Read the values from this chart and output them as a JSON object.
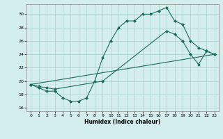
{
  "xlabel": "Humidex (Indice chaleur)",
  "bg_color": "#d4eeed",
  "grid_color": "#aed4d0",
  "line_color": "#1a6b5a",
  "xlim": [
    -0.5,
    23.5
  ],
  "ylim": [
    15.5,
    31.5
  ],
  "xticks": [
    0,
    1,
    2,
    3,
    4,
    5,
    6,
    7,
    8,
    9,
    10,
    11,
    12,
    13,
    14,
    15,
    16,
    17,
    18,
    19,
    20,
    21,
    22,
    23
  ],
  "yticks": [
    16,
    18,
    20,
    22,
    24,
    26,
    28,
    30
  ],
  "curve1_x": [
    0,
    1,
    2,
    3,
    4,
    5,
    6,
    7,
    8,
    9,
    10,
    11,
    12,
    13,
    14,
    15,
    16,
    17,
    18,
    19,
    20,
    21,
    22,
    23
  ],
  "curve1_y": [
    19.5,
    19.0,
    18.5,
    18.5,
    17.5,
    17.0,
    17.0,
    17.5,
    20.0,
    23.5,
    26.0,
    28.0,
    29.0,
    29.0,
    30.0,
    30.0,
    30.5,
    31.0,
    29.0,
    28.5,
    26.0,
    25.0,
    24.5,
    24.0
  ],
  "curve2_x": [
    0,
    1,
    2,
    3,
    9,
    17,
    18,
    19,
    20,
    21,
    22,
    23
  ],
  "curve2_y": [
    19.5,
    19.2,
    19.0,
    18.8,
    20.0,
    27.5,
    27.0,
    26.0,
    24.0,
    22.5,
    24.5,
    24.0
  ],
  "curve3_x": [
    0,
    23
  ],
  "curve3_y": [
    19.5,
    24.0
  ]
}
